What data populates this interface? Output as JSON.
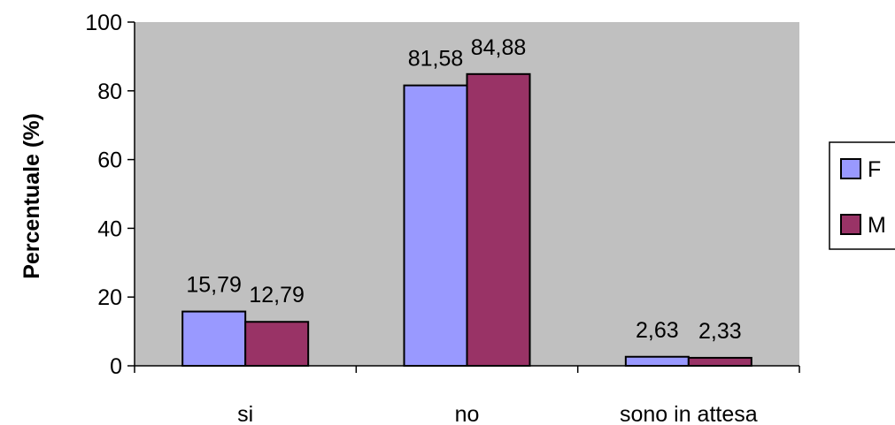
{
  "chart_data": {
    "type": "bar",
    "categories": [
      "si",
      "no",
      "sono in attesa"
    ],
    "series": [
      {
        "name": "F",
        "values": [
          15.79,
          81.58,
          2.63
        ],
        "labels": [
          "15,79",
          "81,58",
          "2,63"
        ],
        "color": "#9999ff"
      },
      {
        "name": "M",
        "values": [
          12.79,
          84.88,
          2.33
        ],
        "labels": [
          "12,79",
          "84,88",
          "2,33"
        ],
        "color": "#993366"
      }
    ],
    "ylabel": "Percentuale (%)",
    "ylim": [
      0,
      100
    ],
    "yticks": [
      0,
      20,
      40,
      60,
      80,
      100
    ],
    "legend_position": "right",
    "plot_background": "#c0c0c0",
    "grid": false
  }
}
